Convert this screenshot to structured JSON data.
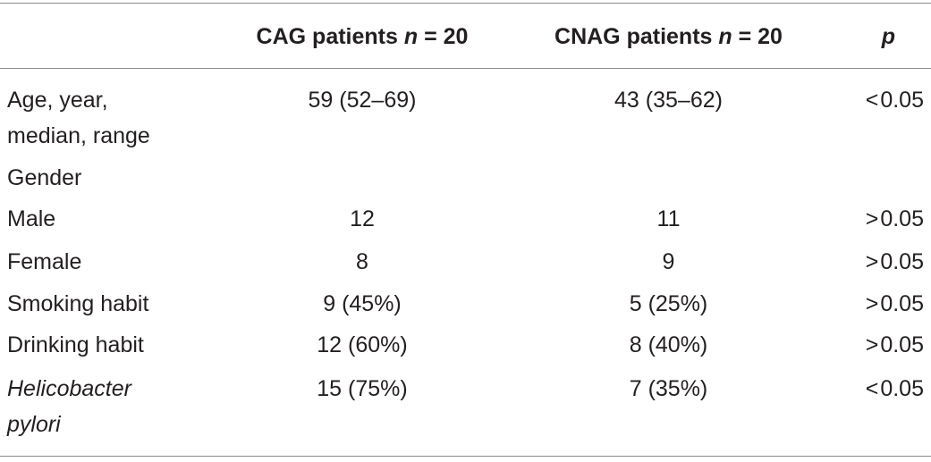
{
  "header": {
    "col1_prefix": "CAG patients ",
    "col1_n": "n",
    "col1_suffix": " = 20",
    "col2_prefix": "CNAG patients ",
    "col2_n": "n",
    "col2_suffix": " = 20",
    "col3": "p"
  },
  "rows": [
    {
      "label_line1": "Age, year,",
      "label_line2": "median, range",
      "cag": "59 (52–69)",
      "cnag": "43 (35–62)",
      "p_sym": "<",
      "p_val": "0.05"
    },
    {
      "label": "Gender"
    },
    {
      "label": "Male",
      "cag": "12",
      "cnag": "11",
      "p_sym": ">",
      "p_val": "0.05"
    },
    {
      "label": "Female",
      "cag": "8",
      "cnag": "9",
      "p_sym": ">",
      "p_val": "0.05"
    },
    {
      "label": "Smoking habit",
      "cag": "9 (45%)",
      "cnag": "5 (25%)",
      "p_sym": ">",
      "p_val": "0.05"
    },
    {
      "label": "Drinking habit",
      "cag": "12 (60%)",
      "cnag": "8 (40%)",
      "p_sym": ">",
      "p_val": "0.05"
    },
    {
      "label_line1": "Helicobacter",
      "label_line2": "pylori",
      "cag": "15 (75%)",
      "cnag": "7 (35%)",
      "p_sym": "<",
      "p_val": "0.05"
    }
  ]
}
